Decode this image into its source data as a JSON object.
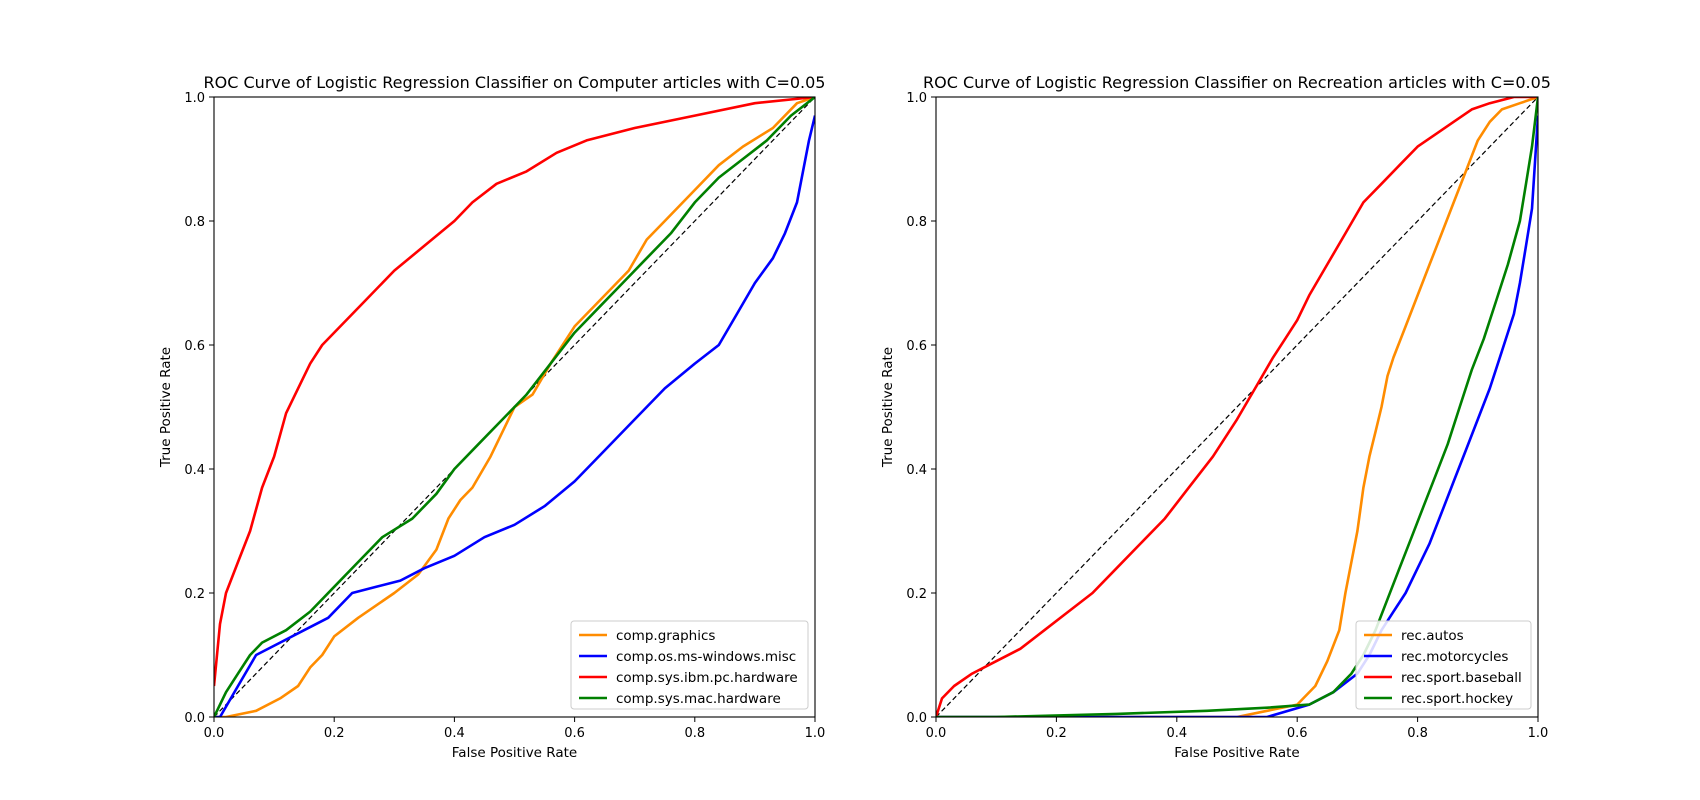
{
  "chart_data": [
    {
      "type": "line",
      "title": "ROC Curve of Logistic Regression Classifier on Computer articles with C=0.05",
      "xlabel": "False Positive Rate",
      "ylabel": "True Positive Rate",
      "xlim": [
        0,
        1
      ],
      "ylim": [
        0,
        1
      ],
      "xticks": [
        "0.0",
        "0.2",
        "0.4",
        "0.6",
        "0.8",
        "1.0"
      ],
      "yticks": [
        "0.0",
        "0.2",
        "0.4",
        "0.6",
        "0.8",
        "1.0"
      ],
      "grid": false,
      "legend_position": "lower-right",
      "diagonal": {
        "style": "dashed",
        "color": "#000000"
      },
      "series": [
        {
          "name": "comp.graphics",
          "color": "#ff8c00",
          "x": [
            0,
            0.02,
            0.07,
            0.11,
            0.14,
            0.16,
            0.18,
            0.2,
            0.24,
            0.3,
            0.34,
            0.37,
            0.39,
            0.41,
            0.43,
            0.46,
            0.48,
            0.5,
            0.53,
            0.56,
            0.6,
            0.65,
            0.69,
            0.72,
            0.75,
            0.8,
            0.84,
            0.88,
            0.93,
            0.97,
            1.0
          ],
          "y": [
            0,
            0,
            0.01,
            0.03,
            0.05,
            0.08,
            0.1,
            0.13,
            0.16,
            0.2,
            0.23,
            0.27,
            0.32,
            0.35,
            0.37,
            0.42,
            0.46,
            0.5,
            0.52,
            0.57,
            0.63,
            0.68,
            0.72,
            0.77,
            0.8,
            0.85,
            0.89,
            0.92,
            0.95,
            0.99,
            1.0
          ]
        },
        {
          "name": "comp.os.ms-windows.misc",
          "color": "#0000ff",
          "x": [
            0,
            0.01,
            0.04,
            0.07,
            0.11,
            0.15,
            0.19,
            0.23,
            0.27,
            0.31,
            0.35,
            0.4,
            0.45,
            0.5,
            0.55,
            0.6,
            0.65,
            0.7,
            0.75,
            0.8,
            0.84,
            0.87,
            0.9,
            0.93,
            0.95,
            0.97,
            0.98,
            0.99,
            1.0
          ],
          "y": [
            0,
            0,
            0.05,
            0.1,
            0.12,
            0.14,
            0.16,
            0.2,
            0.21,
            0.22,
            0.24,
            0.26,
            0.29,
            0.31,
            0.34,
            0.38,
            0.43,
            0.48,
            0.53,
            0.57,
            0.6,
            0.65,
            0.7,
            0.74,
            0.78,
            0.83,
            0.88,
            0.93,
            0.97
          ]
        },
        {
          "name": "comp.sys.ibm.pc.hardware",
          "color": "#ff0000",
          "x": [
            0,
            0.01,
            0.02,
            0.04,
            0.06,
            0.08,
            0.1,
            0.12,
            0.14,
            0.16,
            0.18,
            0.2,
            0.25,
            0.3,
            0.35,
            0.4,
            0.43,
            0.47,
            0.52,
            0.57,
            0.62,
            0.7,
            0.8,
            0.9,
            1.0
          ],
          "y": [
            0.05,
            0.15,
            0.2,
            0.25,
            0.3,
            0.37,
            0.42,
            0.49,
            0.53,
            0.57,
            0.6,
            0.62,
            0.67,
            0.72,
            0.76,
            0.8,
            0.83,
            0.86,
            0.88,
            0.91,
            0.93,
            0.95,
            0.97,
            0.99,
            1.0
          ]
        },
        {
          "name": "comp.sys.mac.hardware",
          "color": "#008000",
          "x": [
            0,
            0.02,
            0.04,
            0.06,
            0.08,
            0.12,
            0.16,
            0.2,
            0.24,
            0.28,
            0.33,
            0.37,
            0.4,
            0.44,
            0.48,
            0.52,
            0.56,
            0.6,
            0.64,
            0.68,
            0.72,
            0.76,
            0.8,
            0.84,
            0.88,
            0.92,
            0.96,
            1.0
          ],
          "y": [
            0,
            0.04,
            0.07,
            0.1,
            0.12,
            0.14,
            0.17,
            0.21,
            0.25,
            0.29,
            0.32,
            0.36,
            0.4,
            0.44,
            0.48,
            0.52,
            0.57,
            0.62,
            0.66,
            0.7,
            0.74,
            0.78,
            0.83,
            0.87,
            0.9,
            0.93,
            0.97,
            1.0
          ]
        }
      ]
    },
    {
      "type": "line",
      "title": "ROC Curve of Logistic Regression Classifier on Recreation articles with C=0.05",
      "xlabel": "False Positive Rate",
      "ylabel": "True Positive Rate",
      "xlim": [
        0,
        1
      ],
      "ylim": [
        0,
        1
      ],
      "xticks": [
        "0.0",
        "0.2",
        "0.4",
        "0.6",
        "0.8",
        "1.0"
      ],
      "yticks": [
        "0.0",
        "0.2",
        "0.4",
        "0.6",
        "0.8",
        "1.0"
      ],
      "grid": false,
      "legend_position": "lower-right",
      "diagonal": {
        "style": "dashed",
        "color": "#000000"
      },
      "series": [
        {
          "name": "rec.autos",
          "color": "#ff8c00",
          "x": [
            0,
            0.5,
            0.55,
            0.6,
            0.63,
            0.65,
            0.67,
            0.68,
            0.69,
            0.7,
            0.71,
            0.72,
            0.73,
            0.74,
            0.75,
            0.76,
            0.78,
            0.8,
            0.82,
            0.84,
            0.86,
            0.88,
            0.9,
            0.92,
            0.94,
            0.97,
            1.0
          ],
          "y": [
            0,
            0,
            0.01,
            0.02,
            0.05,
            0.09,
            0.14,
            0.2,
            0.25,
            0.3,
            0.37,
            0.42,
            0.46,
            0.5,
            0.55,
            0.58,
            0.63,
            0.68,
            0.73,
            0.78,
            0.83,
            0.88,
            0.93,
            0.96,
            0.98,
            0.99,
            1.0
          ]
        },
        {
          "name": "rec.motorcycles",
          "color": "#0000ff",
          "x": [
            0,
            0.55,
            0.62,
            0.66,
            0.7,
            0.72,
            0.74,
            0.76,
            0.78,
            0.8,
            0.82,
            0.84,
            0.86,
            0.88,
            0.9,
            0.92,
            0.94,
            0.96,
            0.97,
            0.98,
            0.99,
            1.0
          ],
          "y": [
            0,
            0,
            0.02,
            0.04,
            0.07,
            0.1,
            0.14,
            0.17,
            0.2,
            0.24,
            0.28,
            0.33,
            0.38,
            0.43,
            0.48,
            0.53,
            0.59,
            0.65,
            0.7,
            0.76,
            0.82,
            0.97
          ]
        },
        {
          "name": "rec.sport.baseball",
          "color": "#ff0000",
          "x": [
            0,
            0.01,
            0.03,
            0.06,
            0.1,
            0.14,
            0.18,
            0.22,
            0.26,
            0.3,
            0.34,
            0.38,
            0.42,
            0.46,
            0.5,
            0.53,
            0.56,
            0.58,
            0.6,
            0.62,
            0.65,
            0.68,
            0.71,
            0.74,
            0.77,
            0.8,
            0.83,
            0.86,
            0.89,
            0.92,
            0.96,
            1.0
          ],
          "y": [
            0,
            0.03,
            0.05,
            0.07,
            0.09,
            0.11,
            0.14,
            0.17,
            0.2,
            0.24,
            0.28,
            0.32,
            0.37,
            0.42,
            0.48,
            0.53,
            0.58,
            0.61,
            0.64,
            0.68,
            0.73,
            0.78,
            0.83,
            0.86,
            0.89,
            0.92,
            0.94,
            0.96,
            0.98,
            0.99,
            1.0,
            1.0
          ]
        },
        {
          "name": "rec.sport.hockey",
          "color": "#008000",
          "x": [
            0,
            0.1,
            0.3,
            0.45,
            0.55,
            0.62,
            0.66,
            0.69,
            0.71,
            0.73,
            0.75,
            0.77,
            0.79,
            0.81,
            0.83,
            0.85,
            0.87,
            0.89,
            0.91,
            0.93,
            0.95,
            0.97,
            0.98,
            0.99,
            1.0
          ],
          "y": [
            0,
            0,
            0.005,
            0.01,
            0.015,
            0.02,
            0.04,
            0.07,
            0.1,
            0.14,
            0.19,
            0.24,
            0.29,
            0.34,
            0.39,
            0.44,
            0.5,
            0.56,
            0.61,
            0.67,
            0.73,
            0.8,
            0.86,
            0.92,
            1.0
          ]
        }
      ]
    }
  ]
}
